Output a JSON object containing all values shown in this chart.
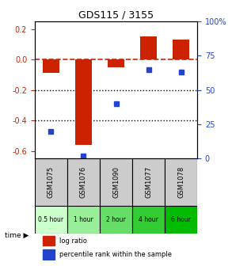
{
  "title": "GDS115 / 3155",
  "categories": [
    "GSM1075",
    "GSM1076",
    "GSM1090",
    "GSM1077",
    "GSM1078"
  ],
  "time_labels": [
    "0.5 hour",
    "1 hour",
    "2 hour",
    "4 hour",
    "6 hour"
  ],
  "time_colors": [
    "#ccffcc",
    "#99ee99",
    "#66dd66",
    "#33cc33",
    "#00bb00"
  ],
  "log_ratios": [
    -0.09,
    -0.56,
    -0.05,
    0.15,
    0.13
  ],
  "percentile_ranks": [
    20,
    2,
    40,
    65,
    63
  ],
  "bar_color": "#cc2200",
  "dot_color": "#2244cc",
  "ylim_left": [
    -0.65,
    0.25
  ],
  "ylim_right": [
    0,
    100
  ],
  "yticks_left": [
    0.2,
    0.0,
    -0.2,
    -0.4,
    -0.6
  ],
  "yticks_right": [
    100,
    75,
    50,
    25,
    0
  ],
  "hline_y": 0.0,
  "dotted_lines": [
    -0.2,
    -0.4
  ],
  "legend_log": "log ratio",
  "legend_pct": "percentile rank within the sample",
  "time_label": "time"
}
